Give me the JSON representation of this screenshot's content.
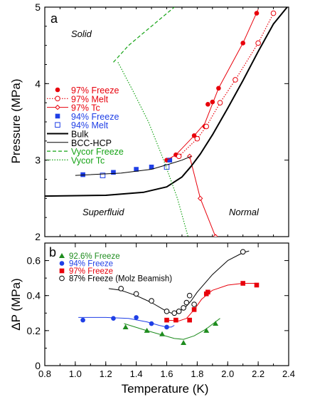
{
  "chart_data": [
    {
      "panel": "a",
      "type": "line",
      "ylabel": "Pressure (MPa)",
      "xlim": [
        0.8,
        2.4
      ],
      "ylim": [
        2,
        5
      ],
      "yticks": [
        2,
        3,
        4,
        5
      ],
      "legend_position": "left",
      "region_labels": [
        "Solid",
        "Superfluid",
        "Normal"
      ],
      "series": [
        {
          "name": "97% Freeze",
          "color": "#e8000b",
          "style": "markers",
          "marker": "circle-filled",
          "x": [
            1.6,
            1.66,
            1.85,
            1.87,
            1.9,
            1.94,
            2.1,
            2.19,
            1.78
          ],
          "y": [
            3.0,
            3.07,
            3.44,
            3.73,
            3.76,
            3.94,
            4.53,
            4.92,
            3.32
          ]
        },
        {
          "name": "97% Melt",
          "color": "#e8000b",
          "style": "dotted",
          "marker": "circle-open",
          "x": [
            1.68,
            1.8,
            1.86,
            1.95,
            2.05,
            2.2,
            2.3
          ],
          "y": [
            3.05,
            3.28,
            3.44,
            3.75,
            4.05,
            4.53,
            4.92
          ]
        },
        {
          "name": "97% Tc",
          "color": "#e8000b",
          "style": "solid",
          "marker": "diamond-open",
          "x": [
            1.75,
            1.82,
            1.92
          ],
          "y": [
            3.05,
            2.5,
            2.0
          ]
        },
        {
          "name": "94% Freeze",
          "color": "#1f3fe6",
          "style": "markers",
          "marker": "square-filled",
          "x": [
            1.05,
            1.25,
            1.4,
            1.5,
            1.62
          ],
          "y": [
            2.81,
            2.84,
            2.88,
            2.91,
            3.0
          ]
        },
        {
          "name": "94% Melt",
          "color": "#1f3fe6",
          "style": "markers",
          "marker": "square-open",
          "x": [
            1.18,
            1.6
          ],
          "y": [
            2.8,
            2.91
          ]
        },
        {
          "name": "Bulk",
          "color": "#000000",
          "style": "thick",
          "x": [
            0.8,
            1.2,
            1.45,
            1.6,
            1.7,
            1.76,
            1.82,
            1.9,
            2.0,
            2.1,
            2.2,
            2.3,
            2.39
          ],
          "y": [
            2.53,
            2.54,
            2.58,
            2.65,
            2.78,
            2.92,
            3.08,
            3.33,
            3.68,
            4.04,
            4.42,
            4.78,
            5.0
          ]
        },
        {
          "name": "BCC-HCP",
          "color": "#000000",
          "style": "thin",
          "x": [
            1.0,
            1.3,
            1.5,
            1.62,
            1.7,
            1.76
          ],
          "y": [
            2.8,
            2.83,
            2.88,
            2.95,
            3.0,
            3.05
          ]
        },
        {
          "name": "Vycor Freeze",
          "color": "#15a315",
          "style": "dashed",
          "x": [
            1.25,
            1.35,
            1.5,
            1.65,
            1.75,
            1.78
          ],
          "y": [
            4.28,
            4.5,
            4.75,
            5.0,
            5.2,
            5.3
          ]
        },
        {
          "name": "Vycor Tc",
          "color": "#15a315",
          "style": "dotted",
          "x": [
            1.28,
            1.38,
            1.48,
            1.58,
            1.67,
            1.74
          ],
          "y": [
            4.28,
            3.9,
            3.5,
            3.0,
            2.5,
            2.0
          ]
        }
      ]
    },
    {
      "panel": "b",
      "type": "line",
      "xlabel": "Temperature (K)",
      "ylabel": "ΔP (MPa)",
      "xlim": [
        0.8,
        2.4
      ],
      "ylim": [
        0,
        0.7
      ],
      "xticks": [
        0.8,
        1.0,
        1.2,
        1.4,
        1.6,
        1.8,
        2.0,
        2.2,
        2.4
      ],
      "yticks": [
        0,
        0.2,
        0.4,
        0.6
      ],
      "legend_position": "top-left",
      "series": [
        {
          "name": "92.6% Freeze",
          "color": "#1e8c1e",
          "marker": "triangle-filled",
          "x": [
            1.33,
            1.47,
            1.57,
            1.71,
            1.86,
            1.92
          ],
          "y": [
            0.22,
            0.2,
            0.18,
            0.13,
            0.2,
            0.24
          ],
          "fit_x": [
            1.32,
            1.45,
            1.57,
            1.65,
            1.71,
            1.78,
            1.86,
            1.95
          ],
          "fit_y": [
            0.24,
            0.205,
            0.175,
            0.155,
            0.15,
            0.17,
            0.21,
            0.27
          ]
        },
        {
          "name": "94% Freeze",
          "color": "#1f3fe6",
          "marker": "circle-filled",
          "x": [
            1.05,
            1.25,
            1.4,
            1.5,
            1.6
          ],
          "y": [
            0.26,
            0.27,
            0.275,
            0.24,
            0.22
          ],
          "fit_x": [
            1.02,
            1.2,
            1.35,
            1.47,
            1.55,
            1.6,
            1.63,
            1.65
          ],
          "fit_y": [
            0.275,
            0.275,
            0.27,
            0.25,
            0.23,
            0.22,
            0.22,
            0.23
          ]
        },
        {
          "name": "97% Freeze",
          "color": "#e8000b",
          "marker": "square-filled",
          "x": [
            1.6,
            1.66,
            1.75,
            1.78,
            1.86,
            1.87,
            2.1,
            2.19
          ],
          "y": [
            0.26,
            0.26,
            0.26,
            0.32,
            0.41,
            0.42,
            0.47,
            0.46
          ],
          "fit_x": [
            1.6,
            1.68,
            1.73,
            1.78,
            1.83,
            1.9,
            2.0,
            2.1,
            2.2
          ],
          "fit_y": [
            0.26,
            0.255,
            0.27,
            0.32,
            0.38,
            0.43,
            0.46,
            0.47,
            0.47
          ]
        },
        {
          "name": "87% Freeze (Molz Beamish)",
          "color": "#000000",
          "marker": "circle-open",
          "x": [
            1.3,
            1.4,
            1.5,
            1.6,
            1.65,
            1.68,
            1.71,
            1.73,
            1.75,
            1.78,
            2.1
          ],
          "y": [
            0.44,
            0.41,
            0.37,
            0.31,
            0.3,
            0.31,
            0.33,
            0.36,
            0.4,
            0.35,
            0.65
          ],
          "fit_x": [
            1.22,
            1.3,
            1.4,
            1.5,
            1.58,
            1.63,
            1.68,
            1.72,
            1.76,
            1.8,
            1.9,
            2.0,
            2.1,
            2.14
          ],
          "fit_y": [
            0.44,
            0.43,
            0.4,
            0.36,
            0.32,
            0.3,
            0.31,
            0.33,
            0.37,
            0.42,
            0.52,
            0.6,
            0.645,
            0.655
          ]
        }
      ]
    }
  ]
}
